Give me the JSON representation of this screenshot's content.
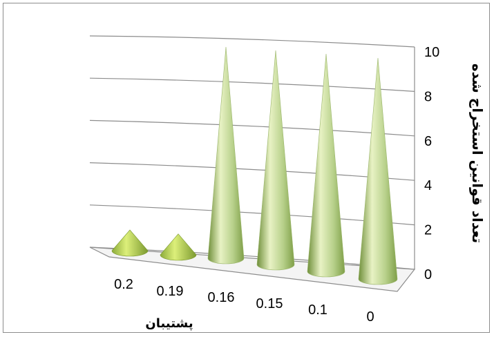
{
  "chart_data": {
    "type": "bar",
    "bar_shape": "3d-cone",
    "categories": [
      "0.2",
      "0.19",
      "0.16",
      "0.15",
      "0.1",
      "0"
    ],
    "values": [
      1,
      1,
      10,
      10,
      10,
      10
    ],
    "xlabel": "پشتیبان",
    "ylabel": "تعداد قوانین استخراج شده",
    "y_ticks": [
      "0",
      "2",
      "4",
      "6",
      "8",
      "10"
    ],
    "ylim": [
      0,
      10
    ],
    "grid": true,
    "legend": "none",
    "colors": {
      "cone_light": "#e8f2c4",
      "cone_mid": "#b7d08a",
      "cone_dark": "#6f8f3a",
      "grid": "#8c8c8c"
    }
  }
}
